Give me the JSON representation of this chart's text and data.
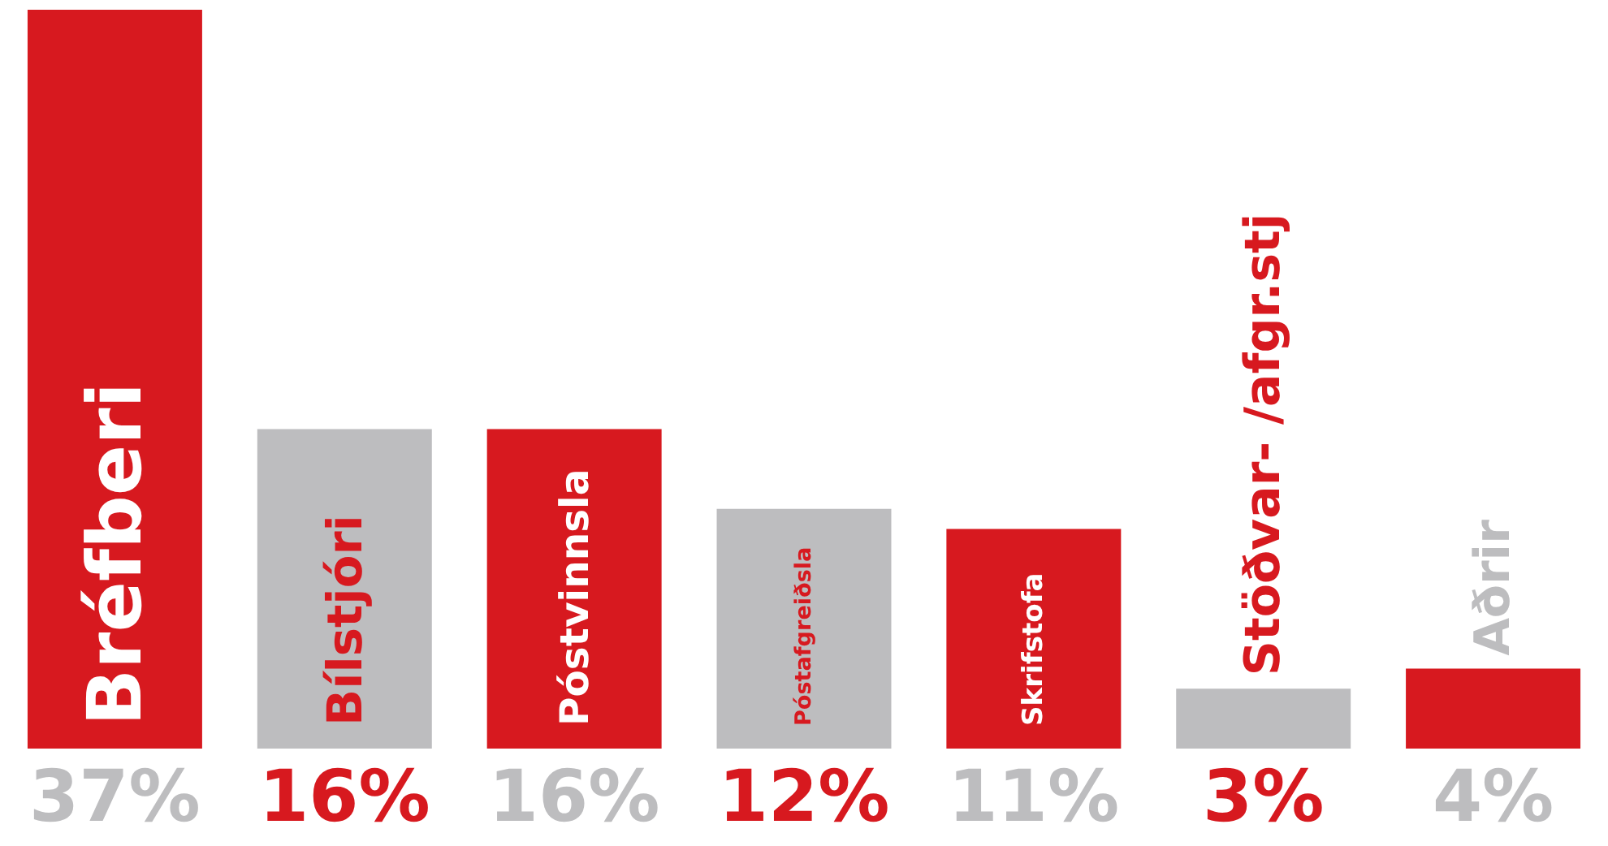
{
  "chart_data": {
    "type": "bar",
    "categories": [
      "Bréfberi",
      "Bílstjóri",
      "Póstvinnsla",
      "Póstafgreiðsla",
      "Skrifstofa",
      "Stöðvar- /afgr.stj",
      "Aðrir"
    ],
    "values": [
      37,
      16,
      16,
      12,
      11,
      3,
      4
    ],
    "colors": [
      "#d7191f",
      "#bdbdbf",
      "#d7191f",
      "#bdbdbf",
      "#d7191f",
      "#bdbdbf",
      "#d7191f"
    ],
    "value_labels": [
      "37%",
      "16%",
      "16%",
      "12%",
      "11%",
      "3%",
      "4%"
    ]
  }
}
